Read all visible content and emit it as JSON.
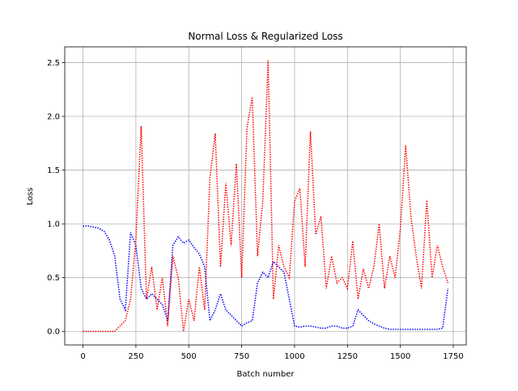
{
  "chart_data": {
    "type": "line",
    "title": "Normal Loss & Regularized Loss",
    "x_label": "Batch number",
    "y_label": "Loss",
    "x": [
      0,
      25,
      50,
      75,
      100,
      125,
      150,
      175,
      200,
      225,
      250,
      275,
      300,
      325,
      350,
      375,
      400,
      425,
      450,
      475,
      500,
      525,
      550,
      575,
      600,
      625,
      650,
      675,
      700,
      725,
      750,
      775,
      800,
      825,
      850,
      875,
      900,
      925,
      950,
      975,
      1000,
      1025,
      1050,
      1075,
      1100,
      1125,
      1150,
      1175,
      1200,
      1225,
      1250,
      1275,
      1300,
      1325,
      1350,
      1375,
      1400,
      1425,
      1450,
      1475,
      1500,
      1525,
      1550,
      1575,
      1600,
      1625,
      1650,
      1675,
      1700,
      1725
    ],
    "series": [
      {
        "color": "#0000ff",
        "values": [
          0.98,
          0.98,
          0.97,
          0.96,
          0.93,
          0.85,
          0.7,
          0.3,
          0.2,
          0.92,
          0.8,
          0.4,
          0.3,
          0.35,
          0.3,
          0.25,
          0.1,
          0.8,
          0.88,
          0.82,
          0.85,
          0.78,
          0.72,
          0.6,
          0.1,
          0.2,
          0.35,
          0.2,
          0.15,
          0.1,
          0.05,
          0.08,
          0.1,
          0.45,
          0.55,
          0.5,
          0.65,
          0.6,
          0.55,
          0.3,
          0.05,
          0.04,
          0.05,
          0.05,
          0.04,
          0.03,
          0.03,
          0.05,
          0.05,
          0.03,
          0.03,
          0.05,
          0.2,
          0.15,
          0.1,
          0.07,
          0.05,
          0.03,
          0.02,
          0.02,
          0.02,
          0.02,
          0.02,
          0.02,
          0.02,
          0.02,
          0.02,
          0.02,
          0.03,
          0.4
        ]
      },
      {
        "color": "#ff0000",
        "values": [
          0,
          0,
          0,
          0,
          0,
          0,
          0,
          0.05,
          0.1,
          0.3,
          0.85,
          1.91,
          0.3,
          0.6,
          0.2,
          0.5,
          0.05,
          0.7,
          0.5,
          0,
          0.3,
          0.1,
          0.6,
          0.2,
          1.43,
          1.84,
          0.6,
          1.38,
          0.8,
          1.56,
          0.5,
          1.89,
          2.18,
          0.7,
          1.22,
          2.52,
          0.3,
          0.8,
          0.6,
          0.5,
          1.21,
          1.33,
          0.6,
          1.86,
          0.9,
          1.07,
          0.4,
          0.7,
          0.45,
          0.5,
          0.4,
          0.84,
          0.3,
          0.58,
          0.4,
          0.6,
          1.0,
          0.4,
          0.7,
          0.5,
          0.95,
          1.73,
          1.07,
          0.7,
          0.4,
          1.22,
          0.5,
          0.8,
          0.6,
          0.45
        ]
      }
    ],
    "xlim": [
      -86.25,
      1811.25
    ],
    "ylim": [
      -0.126,
      2.646
    ],
    "xticks": [
      0,
      250,
      500,
      750,
      1000,
      1250,
      1500,
      1750
    ],
    "yticks": [
      {
        "value": 0,
        "label": "0.0"
      },
      0.5,
      {
        "value": 1,
        "label": "1.0"
      },
      1.5,
      {
        "value": 2,
        "label": "2.0"
      },
      2.5
    ],
    "grid": true
  }
}
